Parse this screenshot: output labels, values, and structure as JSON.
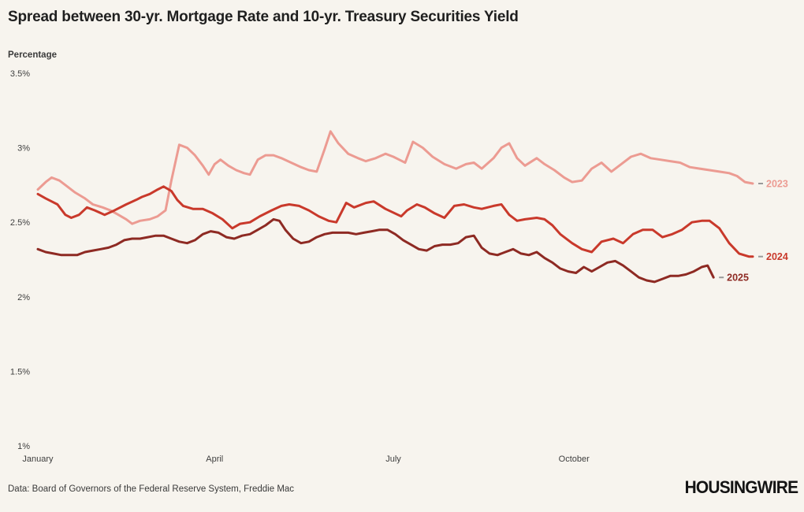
{
  "title": "Spread between 30-yr. Mortgage Rate and 10-yr. Treasury Securities Yield",
  "y_axis_title": "Percentage",
  "footer": {
    "source": "Data: Board of Governors of the Federal Reserve System, Freddie Mac",
    "brand": "HOUSINGWIRE"
  },
  "colors": {
    "background": "#f7f4ee",
    "series_2023": "#ec9b92",
    "series_2024": "#c9392b",
    "series_2025": "#8e2a23",
    "end_dash": "#999999",
    "text": "#3f3f3f"
  },
  "chart_data": {
    "type": "line",
    "title": "Spread between 30-yr. Mortgage Rate and 10-yr. Treasury Securities Yield",
    "xlabel": "",
    "ylabel": "Percentage",
    "ylim": [
      1,
      3.5
    ],
    "xlim_days": [
      0,
      364
    ],
    "grid": false,
    "legend_position": "end-of-line-labels",
    "y_ticks": [
      {
        "value": 3.5,
        "label": "3.5%"
      },
      {
        "value": 3.0,
        "label": "3%"
      },
      {
        "value": 2.5,
        "label": "2.5%"
      },
      {
        "value": 2.0,
        "label": "2%"
      },
      {
        "value": 1.5,
        "label": "1.5%"
      },
      {
        "value": 1.0,
        "label": "1%"
      }
    ],
    "x_ticks": [
      {
        "day": 0,
        "label": "January"
      },
      {
        "day": 90,
        "label": "April"
      },
      {
        "day": 181,
        "label": "July"
      },
      {
        "day": 273,
        "label": "October"
      }
    ],
    "series": [
      {
        "name": "2023",
        "color": "#ec9b92",
        "days": [
          0,
          4,
          7,
          11,
          15,
          19,
          24,
          28,
          33,
          37,
          41,
          45,
          48,
          52,
          57,
          61,
          65,
          68,
          72,
          76,
          80,
          84,
          87,
          90,
          93,
          97,
          101,
          105,
          108,
          112,
          116,
          120,
          124,
          129,
          134,
          138,
          142,
          146,
          149,
          153,
          158,
          163,
          167,
          172,
          177,
          181,
          187,
          191,
          196,
          201,
          207,
          213,
          218,
          222,
          226,
          232,
          236,
          240,
          244,
          248,
          254,
          258,
          263,
          268,
          272,
          277,
          282,
          287,
          292,
          297,
          302,
          307,
          312,
          317,
          322,
          327,
          332,
          337,
          342,
          347,
          352,
          356,
          360,
          364
        ],
        "values": [
          2.72,
          2.77,
          2.8,
          2.78,
          2.74,
          2.7,
          2.66,
          2.62,
          2.6,
          2.58,
          2.55,
          2.52,
          2.49,
          2.51,
          2.52,
          2.54,
          2.58,
          2.78,
          3.02,
          3.0,
          2.95,
          2.88,
          2.82,
          2.89,
          2.92,
          2.88,
          2.85,
          2.83,
          2.82,
          2.92,
          2.95,
          2.95,
          2.93,
          2.9,
          2.87,
          2.85,
          2.84,
          2.99,
          3.11,
          3.03,
          2.96,
          2.93,
          2.91,
          2.93,
          2.96,
          2.94,
          2.9,
          3.04,
          3.0,
          2.94,
          2.89,
          2.86,
          2.89,
          2.9,
          2.86,
          2.93,
          3.0,
          3.03,
          2.93,
          2.88,
          2.93,
          2.89,
          2.85,
          2.8,
          2.77,
          2.78,
          2.86,
          2.9,
          2.84,
          2.89,
          2.94,
          2.96,
          2.93,
          2.92,
          2.91,
          2.9,
          2.87,
          2.86,
          2.85,
          2.84,
          2.83,
          2.81,
          2.77,
          2.76
        ]
      },
      {
        "name": "2024",
        "color": "#c9392b",
        "days": [
          0,
          4,
          7,
          10,
          14,
          17,
          21,
          25,
          29,
          34,
          39,
          45,
          50,
          53,
          57,
          61,
          64,
          68,
          71,
          74,
          79,
          84,
          89,
          94,
          99,
          103,
          108,
          113,
          119,
          124,
          128,
          133,
          138,
          143,
          148,
          152,
          157,
          161,
          167,
          171,
          177,
          185,
          188,
          193,
          197,
          202,
          207,
          212,
          217,
          222,
          226,
          232,
          236,
          240,
          244,
          248,
          254,
          258,
          262,
          266,
          272,
          277,
          282,
          287,
          293,
          298,
          303,
          308,
          313,
          318,
          323,
          328,
          333,
          338,
          342,
          347,
          352,
          357,
          362,
          364
        ],
        "values": [
          2.69,
          2.66,
          2.64,
          2.62,
          2.55,
          2.53,
          2.55,
          2.6,
          2.58,
          2.55,
          2.58,
          2.62,
          2.65,
          2.67,
          2.69,
          2.72,
          2.74,
          2.71,
          2.65,
          2.61,
          2.59,
          2.59,
          2.56,
          2.52,
          2.46,
          2.49,
          2.5,
          2.54,
          2.58,
          2.61,
          2.62,
          2.61,
          2.58,
          2.54,
          2.51,
          2.5,
          2.63,
          2.6,
          2.63,
          2.64,
          2.59,
          2.54,
          2.58,
          2.62,
          2.6,
          2.56,
          2.53,
          2.61,
          2.62,
          2.6,
          2.59,
          2.61,
          2.62,
          2.55,
          2.51,
          2.52,
          2.53,
          2.52,
          2.48,
          2.42,
          2.36,
          2.32,
          2.3,
          2.37,
          2.39,
          2.36,
          2.42,
          2.45,
          2.45,
          2.4,
          2.42,
          2.45,
          2.5,
          2.51,
          2.51,
          2.46,
          2.36,
          2.29,
          2.27,
          2.27
        ]
      },
      {
        "name": "2025",
        "color": "#8e2a23",
        "days": [
          0,
          4,
          8,
          12,
          16,
          20,
          24,
          28,
          32,
          36,
          40,
          44,
          48,
          52,
          56,
          60,
          64,
          68,
          72,
          76,
          80,
          84,
          88,
          92,
          96,
          100,
          104,
          108,
          112,
          116,
          120,
          123,
          126,
          130,
          134,
          138,
          142,
          146,
          150,
          154,
          158,
          162,
          166,
          170,
          174,
          178,
          182,
          186,
          190,
          194,
          198,
          202,
          206,
          210,
          214,
          218,
          222,
          226,
          230,
          234,
          238,
          242,
          246,
          250,
          254,
          258,
          262,
          266,
          270,
          274,
          278,
          282,
          286,
          290,
          294,
          298,
          302,
          306,
          310,
          314,
          318,
          322,
          326,
          330,
          334,
          338,
          341,
          344
        ],
        "values": [
          2.32,
          2.3,
          2.29,
          2.28,
          2.28,
          2.28,
          2.3,
          2.31,
          2.32,
          2.33,
          2.35,
          2.38,
          2.39,
          2.39,
          2.4,
          2.41,
          2.41,
          2.39,
          2.37,
          2.36,
          2.38,
          2.42,
          2.44,
          2.43,
          2.4,
          2.39,
          2.41,
          2.42,
          2.45,
          2.48,
          2.52,
          2.51,
          2.45,
          2.39,
          2.36,
          2.37,
          2.4,
          2.42,
          2.43,
          2.43,
          2.43,
          2.42,
          2.43,
          2.44,
          2.45,
          2.45,
          2.42,
          2.38,
          2.35,
          2.32,
          2.31,
          2.34,
          2.35,
          2.35,
          2.36,
          2.4,
          2.41,
          2.33,
          2.29,
          2.28,
          2.3,
          2.32,
          2.29,
          2.28,
          2.3,
          2.26,
          2.23,
          2.19,
          2.17,
          2.16,
          2.2,
          2.17,
          2.2,
          2.23,
          2.24,
          2.21,
          2.17,
          2.13,
          2.11,
          2.1,
          2.12,
          2.14,
          2.14,
          2.15,
          2.17,
          2.2,
          2.21,
          2.13
        ]
      }
    ]
  }
}
